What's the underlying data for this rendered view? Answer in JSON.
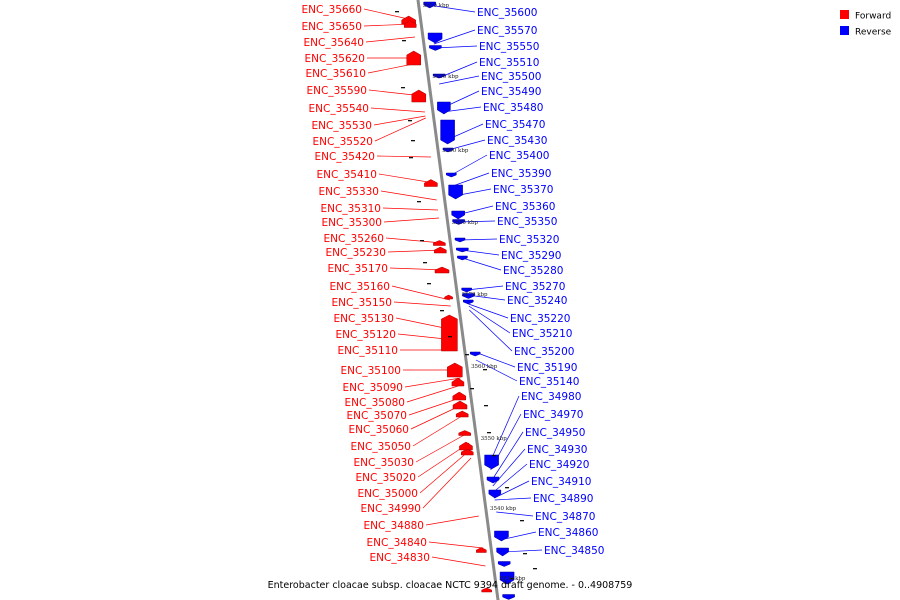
{
  "caption": "Enterobacter cloacae subsp. cloacae NCTC 9394 draft genome. - 0..4908759",
  "legend": [
    {
      "label": "Forward",
      "color": "#ff0000"
    },
    {
      "label": "Reverse",
      "color": "#0000ff"
    }
  ],
  "kbp_marks": [
    "3610 kbp",
    "3600 kbp",
    "3590 kbp",
    "3580 kbp",
    "3570 kbp",
    "3560 kbp",
    "3550 kbp",
    "3540 kbp",
    "3530 kbp"
  ],
  "forward_labels": [
    "ENC_35660",
    "ENC_35650",
    "ENC_35640",
    "ENC_35620",
    "ENC_35610",
    "ENC_35590",
    "ENC_35540",
    "ENC_35530",
    "ENC_35520",
    "ENC_35420",
    "ENC_35410",
    "ENC_35330",
    "ENC_35310",
    "ENC_35300",
    "ENC_35260",
    "ENC_35230",
    "ENC_35170",
    "ENC_35160",
    "ENC_35150",
    "ENC_35130",
    "ENC_35120",
    "ENC_35110",
    "ENC_35100",
    "ENC_35090",
    "ENC_35080",
    "ENC_35070",
    "ENC_35060",
    "ENC_35050",
    "ENC_35030",
    "ENC_35020",
    "ENC_35000",
    "ENC_34990",
    "ENC_34880",
    "ENC_34840",
    "ENC_34830"
  ],
  "reverse_labels": [
    "ENC_35600",
    "ENC_35570",
    "ENC_35550",
    "ENC_35510",
    "ENC_35500",
    "ENC_35490",
    "ENC_35480",
    "ENC_35470",
    "ENC_35430",
    "ENC_35400",
    "ENC_35390",
    "ENC_35370",
    "ENC_35360",
    "ENC_35350",
    "ENC_35320",
    "ENC_35290",
    "ENC_35280",
    "ENC_35270",
    "ENC_35240",
    "ENC_35220",
    "ENC_35210",
    "ENC_35200",
    "ENC_35190",
    "ENC_35140",
    "ENC_34980",
    "ENC_34970",
    "ENC_34950",
    "ENC_34930",
    "ENC_34920",
    "ENC_34910",
    "ENC_34890",
    "ENC_34870",
    "ENC_34860",
    "ENC_34850"
  ],
  "colors": {
    "forward": "#ff0000",
    "forward_dark": "#a80000",
    "reverse": "#0000ff",
    "reverse_dark": "#00009a",
    "backbone": "#8a8a8a"
  }
}
